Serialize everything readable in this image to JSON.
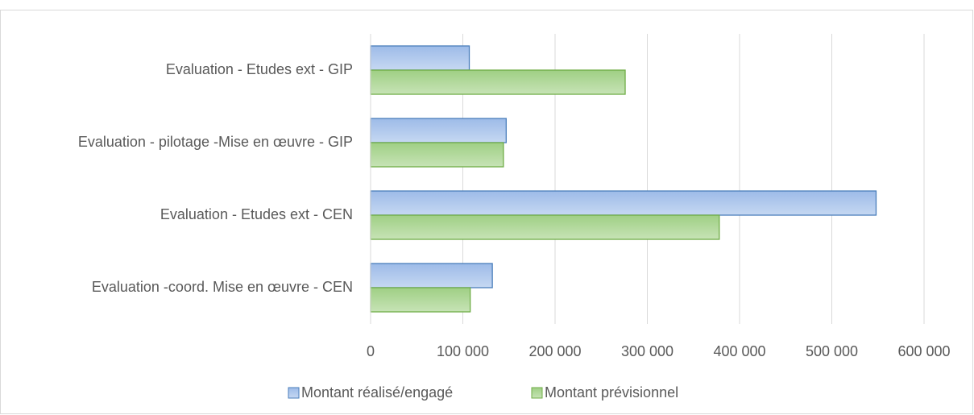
{
  "chart_data": {
    "type": "bar",
    "orientation": "horizontal",
    "categories": [
      "Evaluation - Etudes ext - GIP",
      "Evaluation - pilotage -Mise en œuvre - GIP",
      "Evaluation - Etudes ext - CEN",
      "Evaluation -coord. Mise en œuvre - CEN"
    ],
    "series": [
      {
        "name": "Montant réalisé/engagé",
        "color": "#4a7ebb",
        "values": [
          107000,
          147000,
          548000,
          132000
        ]
      },
      {
        "name": "Montant prévisionnel",
        "color": "#70ad47",
        "values": [
          276000,
          144000,
          378000,
          108000
        ]
      }
    ],
    "xlim": [
      0,
      600000
    ],
    "xticks": [
      0,
      {
        "value": 100000,
        "label": "100 000"
      },
      {
        "value": 200000,
        "label": "200 000"
      },
      {
        "value": 300000,
        "label": "300 000"
      },
      {
        "value": 400000,
        "label": "400 000"
      },
      {
        "value": 500000,
        "label": "500 000"
      },
      {
        "value": 600000,
        "label": "600 000"
      }
    ],
    "grid": true,
    "legend": "bottom"
  }
}
